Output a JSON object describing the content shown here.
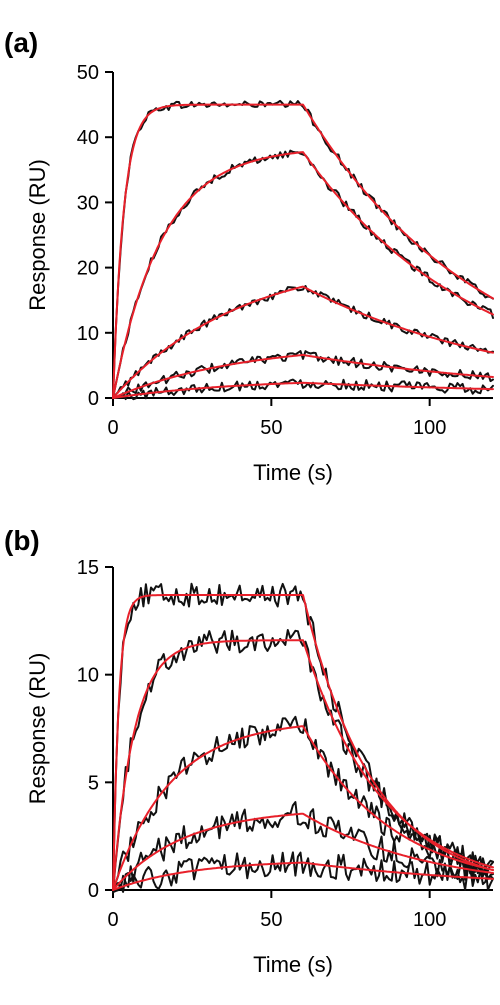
{
  "colors": {
    "data": "#111111",
    "fit": "#e8202a"
  },
  "chart_data": [
    {
      "type": "line",
      "panel_label": "(a)",
      "xlabel": "Time (s)",
      "ylabel": "Response (RU)",
      "xlim": [
        0,
        120
      ],
      "ylim": [
        0,
        50
      ],
      "xticks": [
        0,
        50,
        100
      ],
      "yticks": [
        0,
        10,
        20,
        30,
        40,
        50
      ],
      "injection_end_s": 60,
      "series": [
        {
          "plateau": 45.0,
          "kon_rate": 0.3,
          "koff": 0.018,
          "noise": 0.6
        },
        {
          "plateau": 38.5,
          "kon_rate": 0.065,
          "koff": 0.018,
          "noise": 0.6
        },
        {
          "plateau": 22.0,
          "kon_rate": 0.025,
          "koff": 0.015,
          "noise": 0.6
        },
        {
          "plateau": 8.5,
          "kon_rate": 0.025,
          "koff": 0.012,
          "noise": 0.7
        },
        {
          "plateau": 3.0,
          "kon_rate": 0.025,
          "koff": 0.009,
          "noise": 0.8
        }
      ]
    },
    {
      "type": "line",
      "panel_label": "(b)",
      "xlabel": "Time (s)",
      "ylabel": "Response (RU)",
      "xlim": [
        0,
        120
      ],
      "ylim": [
        0,
        15
      ],
      "xticks": [
        0,
        50,
        100
      ],
      "yticks": [
        0,
        5,
        10,
        15
      ],
      "injection_end_s": 60,
      "series": [
        {
          "plateau": 13.7,
          "kon_rate": 0.55,
          "koff": 0.045,
          "noise": 0.55
        },
        {
          "plateau": 11.6,
          "kon_rate": 0.15,
          "koff": 0.04,
          "noise": 0.55
        },
        {
          "plateau": 7.9,
          "kon_rate": 0.055,
          "koff": 0.035,
          "noise": 0.55
        },
        {
          "plateau": 3.8,
          "kon_rate": 0.045,
          "koff": 0.025,
          "noise": 0.6
        },
        {
          "plateau": 1.4,
          "kon_rate": 0.04,
          "koff": 0.015,
          "noise": 0.6
        }
      ]
    }
  ]
}
